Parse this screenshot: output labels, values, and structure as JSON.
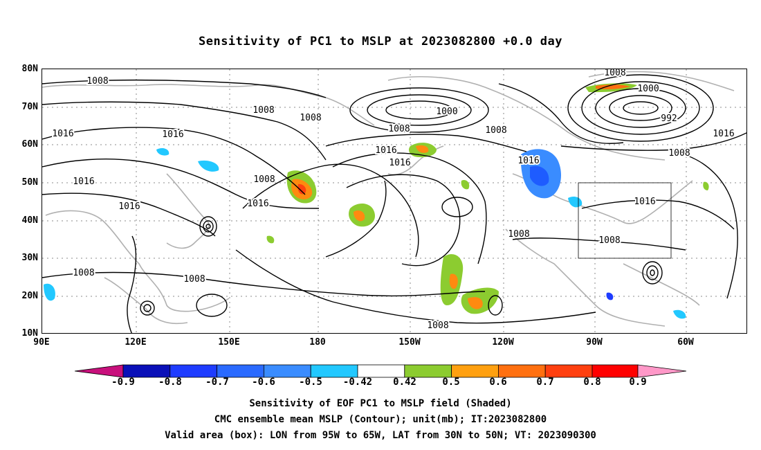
{
  "title": "Sensitivity of PC1 to MSLP at 2023082800 +0.0 day",
  "axes": {
    "lat_labels": [
      "80N",
      "70N",
      "60N",
      "50N",
      "40N",
      "30N",
      "20N",
      "10N"
    ],
    "lon_labels": [
      "90E",
      "120E",
      "150E",
      "180",
      "150W",
      "120W",
      "90W",
      "60W"
    ]
  },
  "contour_labels": [
    "1008",
    "1000",
    "1008",
    "1016",
    "1016",
    "1008",
    "1008",
    "1000",
    "992",
    "1008",
    "1008",
    "1016",
    "1016",
    "1016",
    "1016",
    "1016",
    "1008",
    "1008",
    "1016",
    "1016",
    "1008",
    "1008",
    "1016",
    "1008",
    "1008",
    "1008"
  ],
  "colorbar": {
    "labels": [
      "-0.9",
      "-0.8",
      "-0.7",
      "-0.6",
      "-0.5",
      "-0.42",
      "0.42",
      "0.5",
      "0.6",
      "0.7",
      "0.8",
      "0.9"
    ],
    "colors": [
      "#c8107c",
      "#0a10b8",
      "#1e3cff",
      "#2a6aff",
      "#3a8cff",
      "#22c8ff",
      "#ffffff",
      "#8ccc30",
      "#ffa010",
      "#ff7010",
      "#ff4010",
      "#ff0000",
      "#ff98c8"
    ]
  },
  "captions": [
    "Sensitivity of EOF PC1 to MSLP field (Shaded)",
    "CMC ensemble mean MSLP (Contour); unit(mb); IT:2023082800",
    "Valid area (box): LON from 95W to 65W, LAT from 30N to 50N; VT: 2023090300"
  ]
}
